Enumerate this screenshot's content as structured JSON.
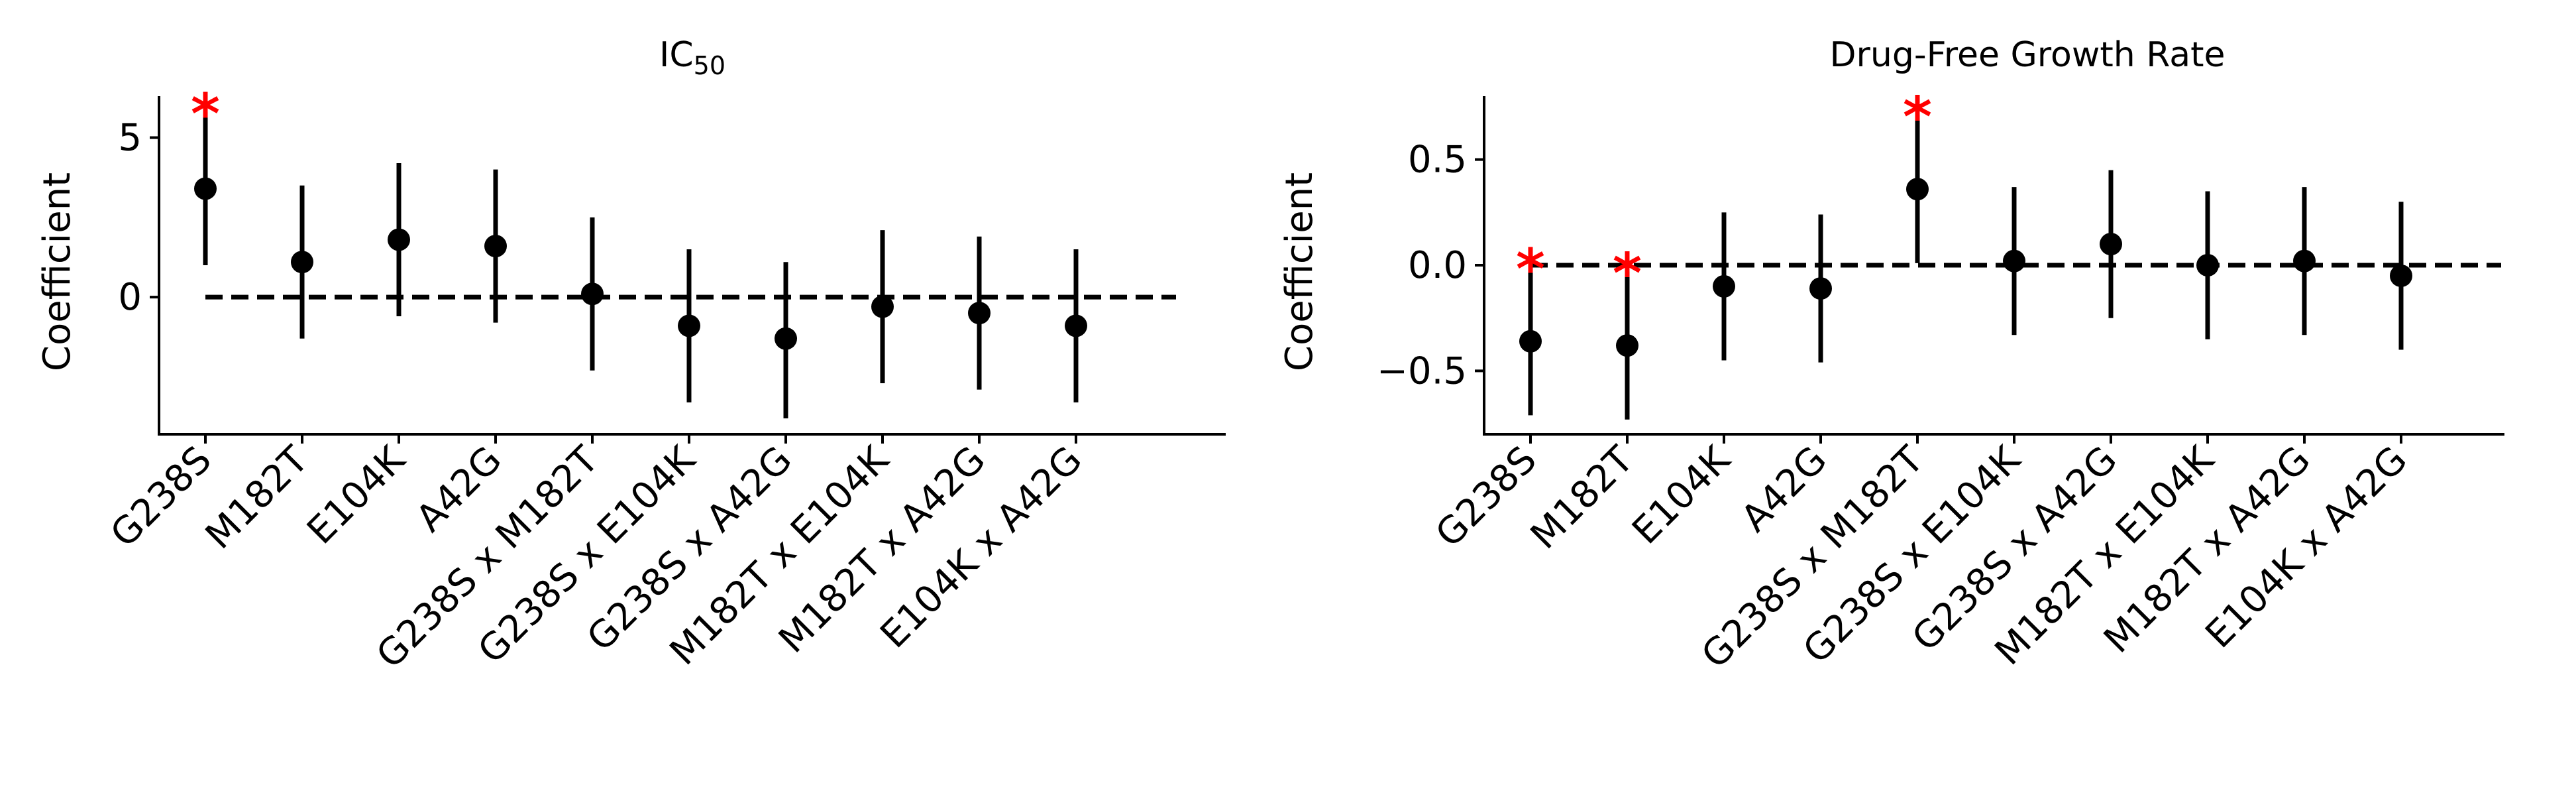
{
  "chart_data": [
    {
      "type": "scatter",
      "subtype": "coefficient-errorbar",
      "title": "IC",
      "title_subscript": "50",
      "xlabel": "",
      "ylabel": "Coefficient",
      "categories": [
        "G238S",
        "M182T",
        "E104K",
        "A42G",
        "G238S x M182T",
        "G238S x E104K",
        "G238S x A42G",
        "M182T x E104K",
        "M182T x A42G",
        "E104K x A42G"
      ],
      "values": [
        3.4,
        1.1,
        1.8,
        1.6,
        0.1,
        -0.9,
        -1.3,
        -0.3,
        -0.5,
        -0.9
      ],
      "error_low": [
        1.0,
        -1.3,
        -0.6,
        -0.8,
        -2.3,
        -3.3,
        -3.8,
        -2.7,
        -2.9,
        -3.3
      ],
      "error_high": [
        5.8,
        3.5,
        4.2,
        4.0,
        2.5,
        1.5,
        1.1,
        2.1,
        1.9,
        1.5
      ],
      "significant": [
        true,
        false,
        false,
        false,
        false,
        false,
        false,
        false,
        false,
        false
      ],
      "significance_marker": "*",
      "significance_color": "#ff0000",
      "reference_line": 0,
      "yticks": [
        5,
        0
      ],
      "ylim": [
        -4.3,
        6.3
      ],
      "grid": false,
      "legend": "none"
    },
    {
      "type": "scatter",
      "subtype": "coefficient-errorbar",
      "title": "Drug-Free Growth Rate",
      "xlabel": "",
      "ylabel": "Coefficient",
      "categories": [
        "G238S",
        "M182T",
        "E104K",
        "A42G",
        "G238S x M182T",
        "G238S x E104K",
        "G238S x A42G",
        "M182T x E104K",
        "M182T x A42G",
        "E104K x A42G"
      ],
      "values": [
        -0.36,
        -0.38,
        -0.1,
        -0.11,
        0.36,
        0.02,
        0.1,
        0.0,
        0.02,
        -0.05
      ],
      "error_low": [
        -0.71,
        -0.73,
        -0.45,
        -0.46,
        0.01,
        -0.33,
        -0.25,
        -0.35,
        -0.33,
        -0.4
      ],
      "error_high": [
        -0.01,
        -0.03,
        0.25,
        0.24,
        0.71,
        0.37,
        0.45,
        0.35,
        0.37,
        0.3
      ],
      "significant": [
        true,
        true,
        false,
        false,
        true,
        false,
        false,
        false,
        false,
        false
      ],
      "significance_marker": "*",
      "significance_color": "#ff0000",
      "reference_line": 0,
      "yticks": [
        0.5,
        0.0,
        -0.5
      ],
      "ytick_labels": [
        "0.5",
        "0.0",
        "−0.5"
      ],
      "ylim": [
        -0.8,
        0.8
      ],
      "grid": false,
      "legend": "none"
    }
  ]
}
